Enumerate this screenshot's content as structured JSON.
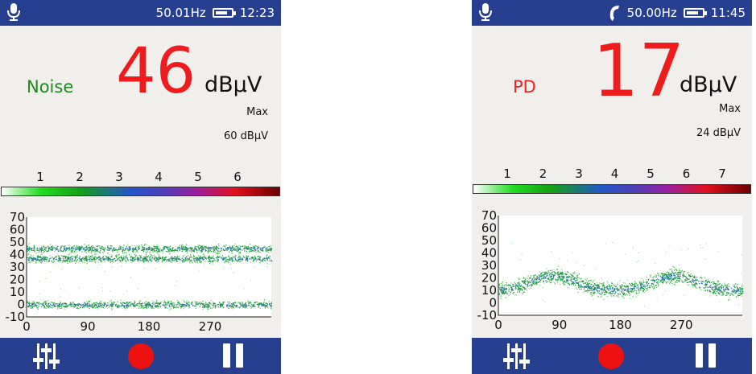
{
  "devices": [
    {
      "status": {
        "frequency": "50.01Hz",
        "time": "12:23",
        "handset": false
      },
      "mode_label": "Noise",
      "mode_color": "#1c8a1c",
      "value": "46",
      "unit": "dBμV",
      "max_label": "Max",
      "max_value": "60 dBμV",
      "scale_numbers": [
        "1",
        "2",
        "3",
        "4",
        "5",
        "6"
      ],
      "plot": {
        "y_ticks": [
          "70",
          "60",
          "50",
          "40",
          "30",
          "20",
          "10",
          "0",
          "-10"
        ],
        "x_ticks": [
          "0",
          "90",
          "180",
          "270"
        ],
        "bands": [
          {
            "center": 45,
            "spread": 3,
            "kind": "flat"
          },
          {
            "center": 37,
            "spread": 3,
            "kind": "flat"
          },
          {
            "center": 0,
            "spread": 3,
            "kind": "flat"
          }
        ]
      }
    },
    {
      "status": {
        "frequency": "50.00Hz",
        "time": "11:45",
        "handset": true
      },
      "mode_label": "PD",
      "mode_color": "#ee2222",
      "value": "17",
      "unit": "dBμV",
      "max_label": "Max",
      "max_value": "24 dBμV",
      "scale_numbers": [
        "1",
        "2",
        "3",
        "4",
        "5",
        "6",
        "7"
      ],
      "plot": {
        "y_ticks": [
          "70",
          "60",
          "50",
          "40",
          "30",
          "20",
          "10",
          "0",
          "-10"
        ],
        "x_ticks": [
          "0",
          "90",
          "180",
          "270"
        ],
        "bands": [
          {
            "center": 10,
            "spread": 6,
            "kind": "humps",
            "peak1": 80,
            "peak2": 260,
            "amp": 12
          }
        ]
      }
    }
  ],
  "icons": {
    "mic": "microphone-icon",
    "battery": "battery-icon",
    "handset": "handset-icon",
    "settings": "equalizer-sliders-icon",
    "record": "record-icon",
    "pause": "pause-icon"
  },
  "colors": {
    "bar": "#26408f",
    "panel": "#f1efec",
    "value": "#ee1c1c"
  }
}
